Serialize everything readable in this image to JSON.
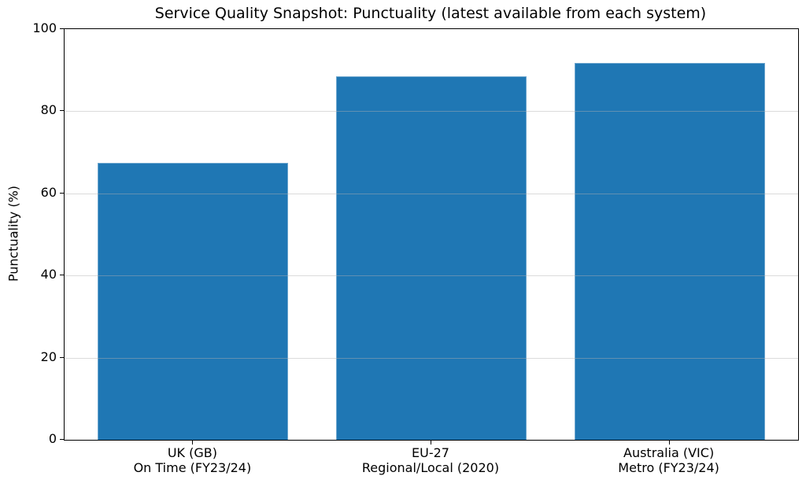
{
  "chart_data": {
    "type": "bar",
    "title": "Service Quality Snapshot: Punctuality (latest available from each system)",
    "xlabel": "",
    "ylabel": "Punctuality (%)",
    "categories": [
      "UK (GB)\nOn Time (FY23/24)",
      "EU-27\nRegional/Local (2020)",
      "Australia (VIC)\nMetro (FY23/24)"
    ],
    "values": [
      67.5,
      88.5,
      91.8
    ],
    "ylim": [
      0,
      100
    ],
    "yticks": [
      0,
      20,
      40,
      60,
      80,
      100
    ],
    "grid_values": [
      20,
      40,
      60,
      80
    ],
    "grid": "horizontal gridlines only, drawn over bars, light gray",
    "xlim": [
      -0.54,
      2.54
    ],
    "bar_width": 0.8,
    "bar_color": "#1f77b4",
    "spine_color": "#000000",
    "text_color": "#000000",
    "background_color": "#ffffff",
    "legend": "none"
  }
}
